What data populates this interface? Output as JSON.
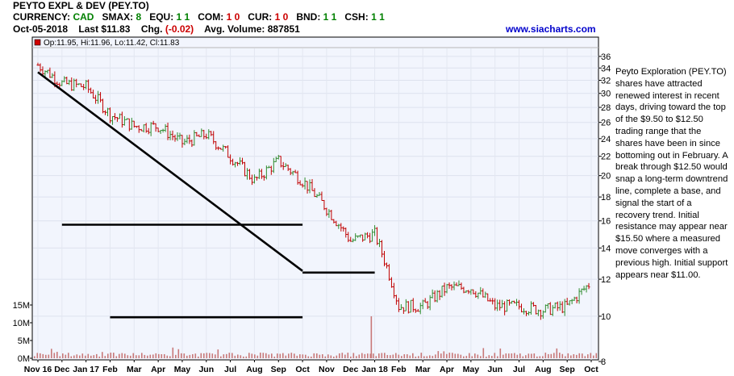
{
  "header": {
    "title": "PEYTO EXPL & DEV (PEY.TO)",
    "currency_label": "CURRENCY:",
    "currency_value": "CAD",
    "smax_label": "SMAX:",
    "smax_value": "8",
    "equ_label": "EQU:",
    "equ_value": "1 1",
    "com_label": "COM:",
    "com_value": "1 0",
    "cur_label": "CUR:",
    "cur_value": "1 0",
    "bnd_label": "BND:",
    "bnd_value": "1 1",
    "csh_label": "CSH:",
    "csh_value": "1 1",
    "date": "Oct-05-2018",
    "last_label": "Last",
    "last_value": "$11.83",
    "chg_label": "Chg.",
    "chg_value": "(-0.02)",
    "avgvol_label": "Avg. Volume:",
    "avgvol_value": "887851",
    "website": "www.siacharts.com"
  },
  "legend": {
    "ohlc_text": "Op:11.95, Hi:11.96, Lo:11.42, Cl:11.83"
  },
  "colors": {
    "plot_bg": "#f2f5fd",
    "up_bar": "#2e8b2e",
    "down_bar": "#c00000",
    "line": "#000000",
    "volume_bar": "#c87878",
    "website": "#0000cc"
  },
  "commentary": "Peyto Exploration (PEY.TO) shares have attracted renewed interest in recent days, driving toward the top of the $9.50 to $12.50 trading range that the shares have been in since bottoming out in February. A break through $12.50 would snap a long-term downtrend line, complete a base, and signal the start of a recovery trend. Initial resistance may appear near $15.50 where a measured move converges with a previous high. Initial support appears near $11.00.",
  "chart_data": {
    "type": "line",
    "scale": "log",
    "price_axis": {
      "ticks": [
        36,
        34,
        32,
        30,
        28,
        26,
        24,
        22,
        20,
        18,
        16,
        14,
        12,
        10,
        8
      ],
      "ylim": [
        8,
        37
      ]
    },
    "volume_axis": {
      "ticks": [
        "15M",
        "10M",
        "5M",
        "0M"
      ],
      "ylim": [
        0,
        15
      ]
    },
    "x_tick_labels": [
      "Nov 16",
      "Dec",
      "Jan 17",
      "Feb",
      "Mar",
      "Apr",
      "May",
      "Jun",
      "Jul",
      "Aug",
      "Sep",
      "Oct",
      "Nov",
      "Dec",
      "Jan 18",
      "Feb",
      "Mar",
      "Apr",
      "May",
      "Jun",
      "Jul",
      "Aug",
      "Sep",
      "Oct"
    ],
    "price_series": {
      "name": "PEY.TO",
      "x": [
        "Nov 16",
        "Dec",
        "Jan 17",
        "Feb",
        "Mar",
        "Apr",
        "May",
        "Jun",
        "Jul",
        "Aug",
        "Sep",
        "Oct",
        "Nov",
        "Dec",
        "Jan 18",
        "Feb",
        "Mar",
        "Apr",
        "May",
        "Jun",
        "Jul",
        "Aug",
        "Sep",
        "Oct"
      ],
      "values": [
        34.5,
        31.5,
        31.0,
        27.0,
        25.5,
        25.5,
        23.5,
        24.5,
        22.0,
        19.5,
        21.5,
        19.5,
        17.0,
        14.5,
        15.0,
        10.5,
        10.5,
        11.5,
        11.5,
        10.5,
        10.5,
        10.3,
        10.5,
        11.83
      ]
    },
    "trendlines": [
      {
        "label": "downtrend",
        "from": [
          "Nov 16",
          33.3
        ],
        "to": [
          "Oct",
          12.5
        ]
      },
      {
        "label": "resistance 15.50",
        "from": [
          "Dec",
          15.7
        ],
        "to": [
          "Oct",
          15.7
        ]
      },
      {
        "label": "range top 12.50",
        "from": [
          "Jan 18",
          12.4
        ],
        "to": [
          "Oct",
          12.4
        ]
      },
      {
        "label": "range bottom",
        "from": [
          "Feb",
          9.95
        ],
        "to": [
          "Oct",
          9.95
        ]
      }
    ]
  }
}
